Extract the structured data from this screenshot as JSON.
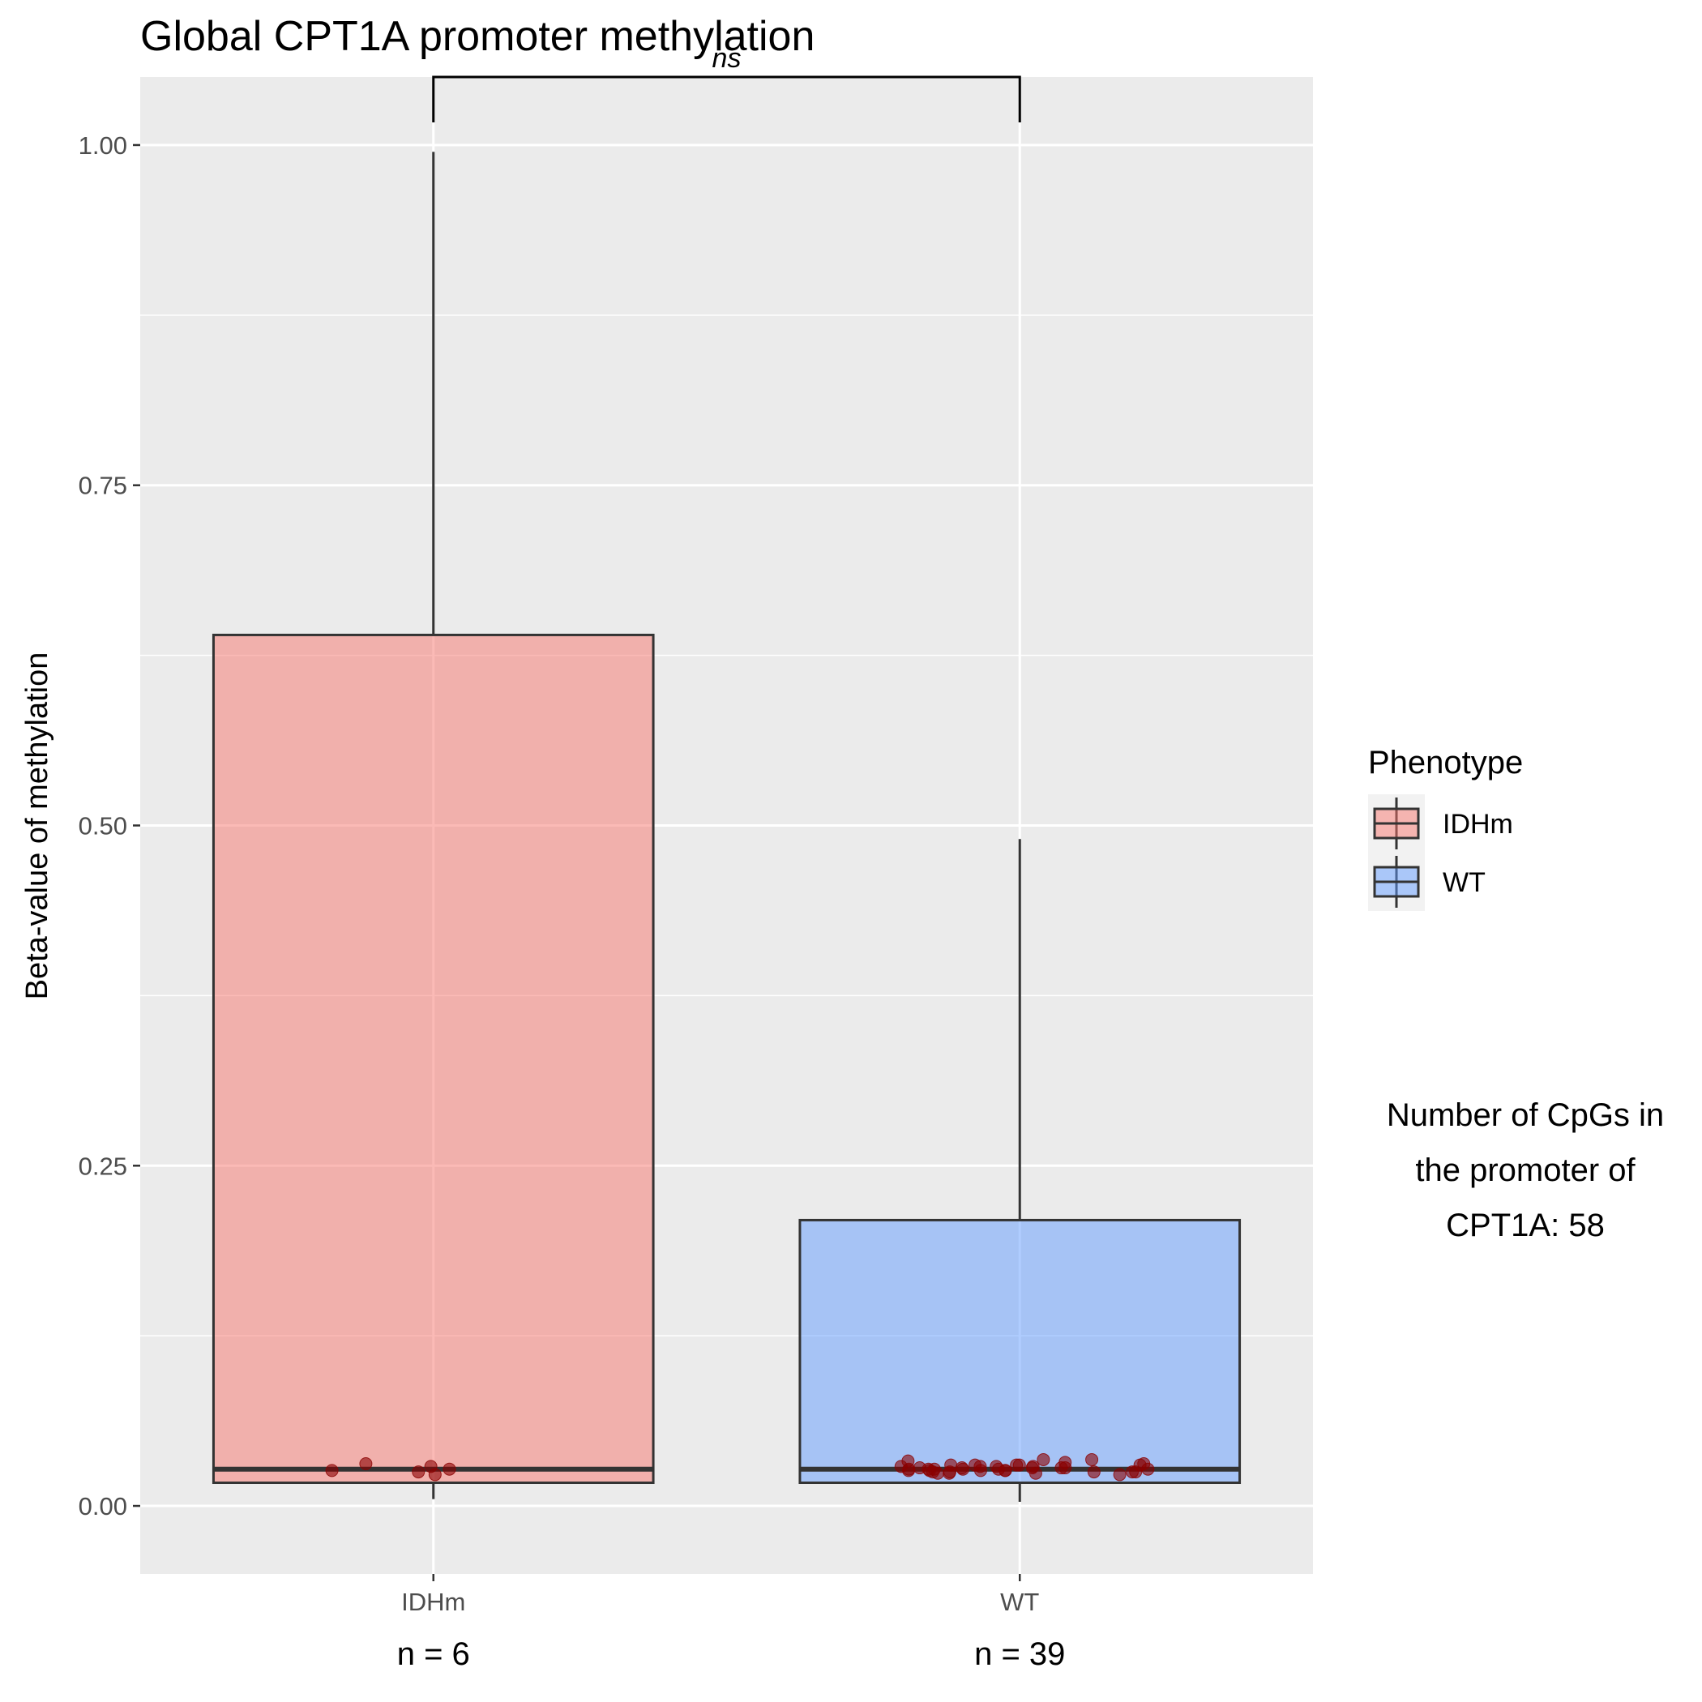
{
  "chart_data": {
    "type": "box",
    "title": "Global CPT1A promoter methylation",
    "ylabel": "Beta-value of methylation",
    "xlabel": "",
    "ylim": [
      -0.05,
      1.05
    ],
    "yticks": [
      0.0,
      0.25,
      0.5,
      0.75,
      1.0
    ],
    "ytick_labels": [
      "0.00",
      "0.25",
      "0.50",
      "0.75",
      "1.00"
    ],
    "grid": true,
    "categories": [
      "IDHm",
      "WT"
    ],
    "n_labels": [
      "n = 6",
      "n = 39"
    ],
    "series": [
      {
        "name": "IDHm",
        "color": "#f8766d",
        "whisker_low": 0.005,
        "q1": 0.017,
        "median": 0.027,
        "q3": 0.64,
        "whisker_high": 0.995,
        "points": [
          0.029,
          0.027,
          0.026,
          0.031,
          0.025,
          0.023
        ]
      },
      {
        "name": "WT",
        "color": "#619cff",
        "whisker_low": 0.003,
        "q1": 0.017,
        "median": 0.027,
        "q3": 0.21,
        "whisker_high": 0.49,
        "points": [
          0.026,
          0.023,
          0.034,
          0.029,
          0.027,
          0.025,
          0.028,
          0.033,
          0.03,
          0.025,
          0.028,
          0.026,
          0.024,
          0.03,
          0.027,
          0.029,
          0.025,
          0.031,
          0.028,
          0.026,
          0.03,
          0.024,
          0.027,
          0.029,
          0.032,
          0.028,
          0.025,
          0.027,
          0.026,
          0.024,
          0.028,
          0.03,
          0.027,
          0.034,
          0.026,
          0.029,
          0.027,
          0.025,
          0.03
        ]
      }
    ],
    "point_color": "#8b0000",
    "significance": {
      "label": "ns",
      "y": 1.05
    },
    "legend": {
      "title": "Phenotype",
      "position": "right",
      "items": [
        "IDHm",
        "WT"
      ]
    },
    "annotation": [
      "Number of CpGs in",
      "the promoter of",
      "CPT1A: 58"
    ]
  }
}
